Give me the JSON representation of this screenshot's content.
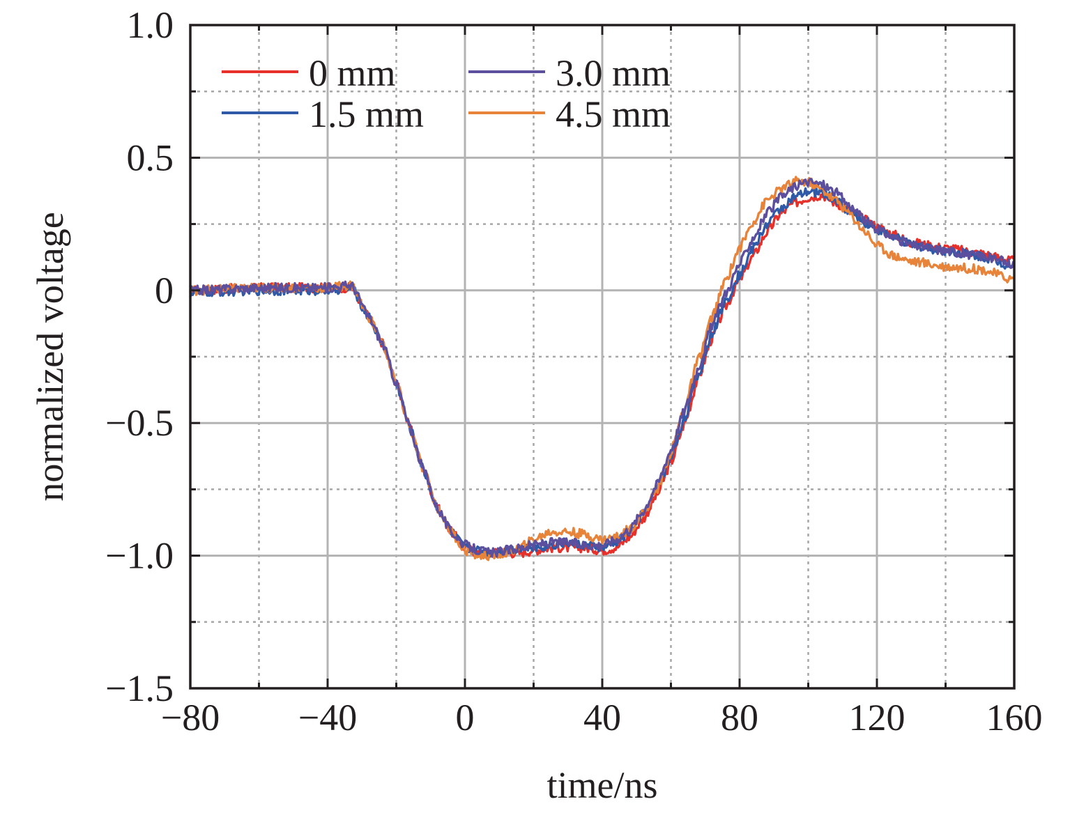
{
  "chart_data": {
    "type": "line",
    "title": "",
    "xlabel": "time/ns",
    "ylabel": "normalized voltage",
    "xlim": [
      -80,
      160
    ],
    "ylim": [
      -1.5,
      1.0
    ],
    "x_ticks": [
      -80,
      -40,
      0,
      40,
      80,
      120,
      160
    ],
    "x_tick_labels": [
      "−80",
      "−40",
      "0",
      "40",
      "80",
      "120",
      "160"
    ],
    "x_minor_ticks": [
      -60,
      -20,
      20,
      60,
      100,
      140
    ],
    "y_ticks": [
      1.0,
      0.5,
      0,
      -0.5,
      -1.0,
      -1.5
    ],
    "y_tick_labels": [
      "1.0",
      "0.5",
      "0",
      "−0.5",
      "−1.0",
      "−1.5"
    ],
    "y_minor_ticks": [
      0.75,
      0.25,
      -0.25,
      -0.75,
      -1.25
    ],
    "grid": true,
    "legend_position": "top-left",
    "series": [
      {
        "name": "0 mm",
        "color": "#e8302a",
        "x": [
          -80,
          -60,
          -40,
          -33,
          -28,
          -24,
          -20,
          -16,
          -12,
          -8,
          -4,
          0,
          4,
          8,
          12,
          16,
          20,
          25,
          30,
          35,
          40,
          44,
          48,
          52,
          56,
          60,
          64,
          68,
          72,
          76,
          80,
          84,
          88,
          92,
          96,
          100,
          104,
          108,
          112,
          116,
          120,
          125,
          130,
          140,
          150,
          160
        ],
        "y": [
          0,
          0.01,
          0.01,
          0.01,
          -0.1,
          -0.2,
          -0.35,
          -0.52,
          -0.68,
          -0.82,
          -0.91,
          -0.97,
          -0.99,
          -0.99,
          -0.99,
          -0.99,
          -0.98,
          -0.97,
          -0.97,
          -0.97,
          -0.98,
          -0.97,
          -0.93,
          -0.86,
          -0.77,
          -0.65,
          -0.5,
          -0.33,
          -0.18,
          -0.06,
          0.04,
          0.13,
          0.22,
          0.29,
          0.33,
          0.35,
          0.36,
          0.33,
          0.3,
          0.27,
          0.24,
          0.21,
          0.18,
          0.16,
          0.14,
          0.11
        ]
      },
      {
        "name": "1.5 mm",
        "color": "#2f5aa8",
        "x": [
          -80,
          -60,
          -40,
          -33,
          -28,
          -24,
          -20,
          -16,
          -12,
          -8,
          -4,
          0,
          4,
          8,
          12,
          16,
          20,
          25,
          30,
          35,
          40,
          44,
          48,
          52,
          56,
          60,
          64,
          68,
          72,
          76,
          80,
          84,
          88,
          92,
          96,
          100,
          104,
          108,
          112,
          116,
          120,
          125,
          130,
          140,
          150,
          160
        ],
        "y": [
          -0.01,
          0,
          0,
          0.01,
          -0.1,
          -0.2,
          -0.35,
          -0.52,
          -0.68,
          -0.82,
          -0.91,
          -0.97,
          -0.98,
          -0.99,
          -0.98,
          -0.97,
          -0.97,
          -0.96,
          -0.95,
          -0.96,
          -0.97,
          -0.95,
          -0.91,
          -0.84,
          -0.75,
          -0.63,
          -0.48,
          -0.32,
          -0.16,
          -0.04,
          0.06,
          0.16,
          0.25,
          0.31,
          0.35,
          0.37,
          0.37,
          0.34,
          0.3,
          0.26,
          0.23,
          0.2,
          0.17,
          0.15,
          0.13,
          0.09
        ]
      },
      {
        "name": "3.0 mm",
        "color": "#5b4f9e",
        "x": [
          -80,
          -60,
          -40,
          -33,
          -28,
          -24,
          -20,
          -16,
          -12,
          -8,
          -4,
          0,
          4,
          8,
          12,
          16,
          20,
          25,
          30,
          35,
          40,
          44,
          48,
          52,
          56,
          60,
          64,
          68,
          72,
          76,
          80,
          84,
          88,
          92,
          96,
          100,
          104,
          108,
          112,
          116,
          120,
          125,
          130,
          140,
          150,
          160
        ],
        "y": [
          0,
          0.01,
          0.01,
          0.02,
          -0.1,
          -0.2,
          -0.35,
          -0.52,
          -0.68,
          -0.82,
          -0.91,
          -0.96,
          -0.98,
          -0.99,
          -0.98,
          -0.97,
          -0.96,
          -0.95,
          -0.95,
          -0.96,
          -0.96,
          -0.94,
          -0.9,
          -0.83,
          -0.73,
          -0.6,
          -0.45,
          -0.29,
          -0.13,
          -0.01,
          0.1,
          0.2,
          0.29,
          0.35,
          0.39,
          0.41,
          0.4,
          0.37,
          0.32,
          0.27,
          0.23,
          0.2,
          0.17,
          0.15,
          0.13,
          0.1
        ]
      },
      {
        "name": "4.5 mm",
        "color": "#e8833a",
        "x": [
          -80,
          -60,
          -40,
          -33,
          -28,
          -24,
          -20,
          -16,
          -12,
          -8,
          -4,
          0,
          4,
          8,
          12,
          16,
          20,
          25,
          30,
          35,
          40,
          44,
          48,
          52,
          56,
          60,
          64,
          68,
          72,
          76,
          80,
          84,
          88,
          92,
          96,
          100,
          104,
          108,
          112,
          116,
          120,
          125,
          130,
          140,
          150,
          160
        ],
        "y": [
          0,
          0.01,
          0.01,
          0.02,
          -0.1,
          -0.2,
          -0.35,
          -0.52,
          -0.68,
          -0.82,
          -0.91,
          -0.98,
          -1.0,
          -1.0,
          -0.99,
          -0.97,
          -0.94,
          -0.91,
          -0.91,
          -0.92,
          -0.94,
          -0.93,
          -0.9,
          -0.84,
          -0.75,
          -0.61,
          -0.44,
          -0.26,
          -0.1,
          0.04,
          0.16,
          0.26,
          0.34,
          0.38,
          0.41,
          0.41,
          0.38,
          0.34,
          0.29,
          0.23,
          0.17,
          0.13,
          0.11,
          0.09,
          0.08,
          0.04
        ]
      }
    ]
  }
}
